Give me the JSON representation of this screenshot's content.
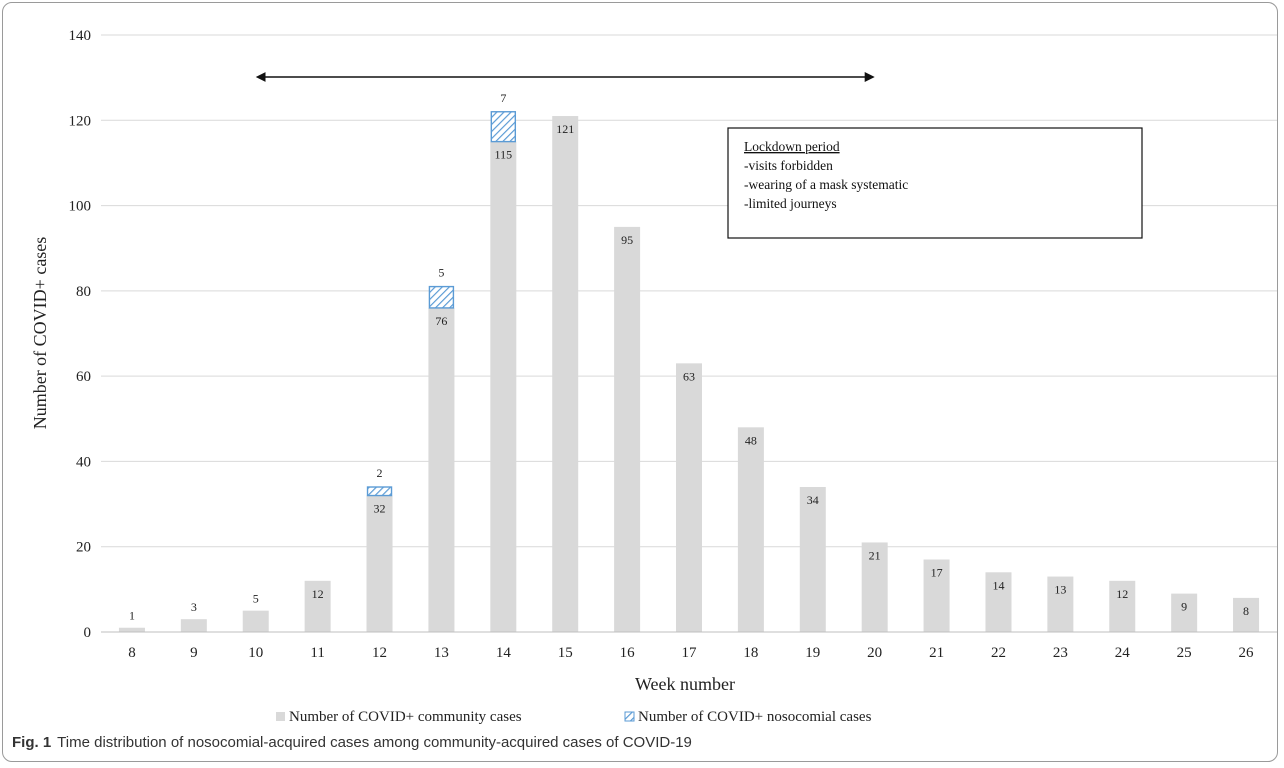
{
  "chart_data": {
    "type": "bar",
    "stacked": true,
    "categories": [
      "8",
      "9",
      "10",
      "11",
      "12",
      "13",
      "14",
      "15",
      "16",
      "17",
      "18",
      "19",
      "20",
      "21",
      "22",
      "23",
      "24",
      "25",
      "26"
    ],
    "series": [
      {
        "name": "Number of COVID+ community cases",
        "color": "#d9d9d9",
        "values": [
          1,
          3,
          5,
          12,
          32,
          76,
          115,
          121,
          95,
          63,
          48,
          34,
          21,
          17,
          14,
          13,
          12,
          9,
          8
        ]
      },
      {
        "name": "Number of COVID+ nosocomial cases",
        "color": "#5b9bd5",
        "pattern": "diagonal-hatch",
        "values": [
          0,
          0,
          0,
          0,
          2,
          5,
          7,
          0,
          0,
          0,
          0,
          0,
          0,
          0,
          0,
          0,
          0,
          0,
          0
        ]
      }
    ],
    "xlabel": "Week number",
    "ylabel": "Number of COVID+ cases",
    "ylim": [
      0,
      140
    ],
    "yticks": [
      0,
      20,
      40,
      60,
      80,
      100,
      120,
      140
    ],
    "grid": true,
    "legend_position": "bottom",
    "annotation": {
      "arrow_from_week": "10",
      "arrow_to_week": "20",
      "box_lines": [
        "Lockdown period",
        "-visits forbidden",
        "-wearing of a mask systematic",
        "-limited journeys"
      ]
    }
  },
  "caption": {
    "label": "Fig. 1",
    "text": "Time distribution of nosocomial-acquired cases among community-acquired cases of COVID-19"
  }
}
